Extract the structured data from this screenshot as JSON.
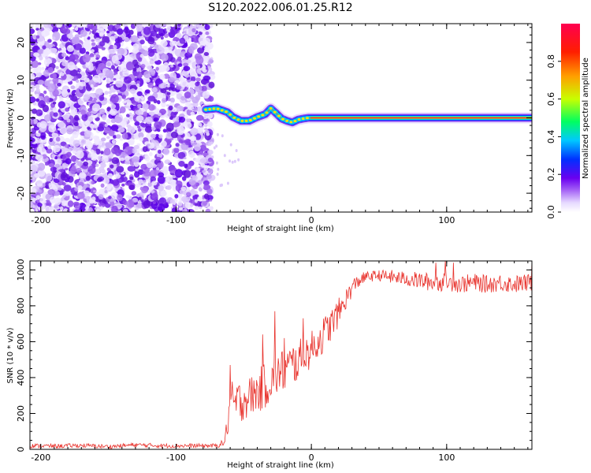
{
  "title": "S120.2022.006.01.25.R12",
  "chart_data": [
    {
      "type": "heatmap",
      "title": "",
      "xlabel": "Height of straight line (km)",
      "ylabel": "Frequency (Hz)",
      "xlim": [
        -208,
        163
      ],
      "ylim": [
        -25,
        25
      ],
      "x_ticks": [
        -200,
        -100,
        0,
        100
      ],
      "x_tick_labels": [
        "-200",
        "-100",
        "0",
        "100"
      ],
      "y_ticks": [
        -20,
        -10,
        0,
        10,
        20
      ],
      "y_tick_labels": [
        "-20",
        "-10",
        "0",
        "10",
        "20"
      ],
      "noise_region_x": [
        -208,
        -77
      ],
      "signal_ridge": {
        "x": [
          -78,
          -70,
          -62,
          -58,
          -52,
          -46,
          -40,
          -34,
          -30,
          -26,
          -22,
          -18,
          -14,
          -10,
          -6,
          -2,
          0,
          20,
          40,
          60,
          80,
          100,
          120,
          140,
          163
        ],
        "freq": [
          2.2,
          2.5,
          1.5,
          0.2,
          -0.8,
          -0.8,
          0.2,
          1.0,
          2.5,
          1.2,
          -0.2,
          -0.8,
          -1.2,
          -0.5,
          -0.2,
          0.0,
          0.0,
          0.0,
          0.0,
          0.0,
          0.0,
          0.0,
          0.0,
          0.0,
          0.0
        ]
      },
      "colorbar": {
        "label": "Normalized spectral amplitude",
        "range": [
          0,
          1
        ],
        "ticks": [
          0,
          0.2,
          0.4,
          0.6,
          0.8
        ],
        "tick_labels": [
          "0.0",
          "0.2",
          "0.4",
          "0.6",
          "0.8"
        ],
        "colormap": [
          "#ffffff",
          "#e6d9ff",
          "#a15cf5",
          "#6a00f0",
          "#0030ff",
          "#00c8ff",
          "#00ff60",
          "#c8ff00",
          "#ffa000",
          "#ff1e00",
          "#ff0050"
        ]
      }
    },
    {
      "type": "line",
      "title": "",
      "xlabel": "Height of straight line (km)",
      "ylabel": "SNR (10 * v/v)",
      "xlim": [
        -208,
        163
      ],
      "ylim": [
        0,
        1050
      ],
      "x_ticks": [
        -200,
        -100,
        0,
        100
      ],
      "x_tick_labels": [
        "-200",
        "-100",
        "0",
        "100"
      ],
      "y_ticks": [
        0,
        200,
        400,
        600,
        800,
        1000
      ],
      "y_tick_labels": [
        "0",
        "200",
        "400",
        "600",
        "800",
        "1000"
      ],
      "series": [
        {
          "name": "SNR",
          "color": "#e8312b",
          "x": [
            -208,
            -190,
            -170,
            -150,
            -130,
            -110,
            -90,
            -70,
            -64,
            -62,
            -60,
            -55,
            -50,
            -45,
            -40,
            -35,
            -30,
            -25,
            -20,
            -15,
            -10,
            -5,
            0,
            5,
            10,
            15,
            20,
            25,
            30,
            35,
            40,
            50,
            60,
            70,
            80,
            90,
            100,
            110,
            120,
            130,
            140,
            150,
            163
          ],
          "y": [
            20,
            18,
            22,
            15,
            25,
            20,
            20,
            20,
            40,
            150,
            230,
            260,
            280,
            300,
            320,
            350,
            380,
            420,
            440,
            470,
            490,
            520,
            560,
            600,
            650,
            700,
            760,
            830,
            900,
            940,
            960,
            970,
            960,
            950,
            940,
            930,
            930,
            920,
            930,
            920,
            930,
            920,
            930
          ],
          "noise_amplitude": [
            12,
            12,
            12,
            12,
            12,
            12,
            12,
            12,
            20,
            80,
            150,
            120,
            120,
            110,
            120,
            130,
            120,
            120,
            130,
            120,
            120,
            110,
            100,
            100,
            100,
            90,
            80,
            60,
            50,
            40,
            30,
            30,
            40,
            40,
            50,
            50,
            50,
            50,
            50,
            50,
            50,
            50,
            50
          ],
          "spikes": [
            [
              -60,
              470
            ],
            [
              -36,
              640
            ],
            [
              -27,
              770
            ],
            [
              -20,
              620
            ],
            [
              -6,
              730
            ],
            [
              92,
              1040
            ],
            [
              99,
              1050
            ],
            [
              105,
              1040
            ],
            [
              163,
              1050
            ]
          ]
        }
      ]
    }
  ]
}
